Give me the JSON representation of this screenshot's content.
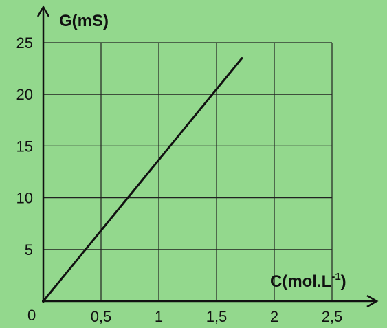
{
  "chart_data": {
    "type": "line",
    "title": "",
    "xlabel": "C(mol.L",
    "xlabel_sup": "-1",
    "xlabel_suffix": ")",
    "ylabel": "G(mS)",
    "origin_label": "0",
    "xlim": [
      0,
      2.5
    ],
    "ylim": [
      0,
      25
    ],
    "x_ticks": [
      0.5,
      1,
      1.5,
      2,
      2.5
    ],
    "x_tick_labels": [
      "0,5",
      "1",
      "1,5",
      "2",
      "2,5"
    ],
    "y_ticks": [
      5,
      10,
      15,
      20,
      25
    ],
    "y_tick_labels": [
      "5",
      "10",
      "15",
      "20",
      "25"
    ],
    "grid": true,
    "series": [
      {
        "x": [
          0,
          1.72
        ],
        "y": [
          0,
          23.5
        ]
      }
    ],
    "colors": {
      "background": "#93d88d",
      "line": "#111111",
      "grid": "#222222"
    }
  }
}
